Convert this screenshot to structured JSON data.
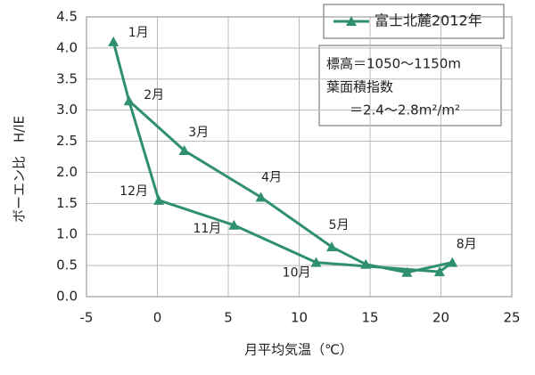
{
  "chart_data": {
    "type": "line",
    "x_label": "月平均気温（℃）",
    "y_label": "ボーエン比　H/lE",
    "xlim": [
      -5,
      25
    ],
    "xticks": [
      -5,
      0,
      5,
      10,
      15,
      20,
      25
    ],
    "ylim": [
      0,
      4.5
    ],
    "yticks": [
      {
        "value": 0,
        "label": "0.0"
      },
      0.5,
      {
        "value": 1,
        "label": "1.0"
      },
      1.5,
      {
        "value": 2,
        "label": "2.0"
      },
      2.5,
      {
        "value": 3,
        "label": "3.0"
      },
      3.5,
      {
        "value": 4,
        "label": "4.0"
      },
      4.5
    ],
    "grid": true,
    "legend": "upper right",
    "series": [
      {
        "name": "富士北麓2012年",
        "color": "#2f8f6f",
        "x": [
          -3.1,
          -2.0,
          1.9,
          7.3,
          12.3,
          14.7,
          17.6,
          20.8,
          19.9,
          11.2,
          5.4,
          0.1
        ],
        "values": [
          4.1,
          3.15,
          2.35,
          1.6,
          0.8,
          0.52,
          0.39,
          0.55,
          0.4,
          0.55,
          1.15,
          1.55
        ],
        "point_labels": [
          "1月",
          "2月",
          "3月",
          "4月",
          "5月",
          null,
          null,
          "8月",
          null,
          "10月",
          "11月",
          "12月"
        ]
      }
    ],
    "annotation": [
      "標高＝1050～1150m",
      "葉面積指数",
      "＝2.4～2.8m²/m²"
    ]
  }
}
